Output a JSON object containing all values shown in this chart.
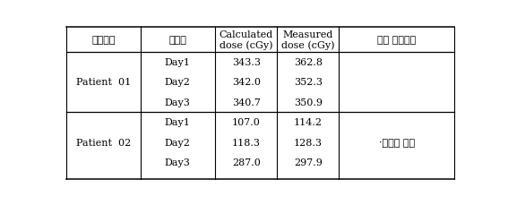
{
  "headers": [
    "환자번호",
    "치료일",
    "Calculated\ndose (cGy)",
    "Measured\ndose (cGy)",
    "환자 특이사항"
  ],
  "patients": [
    {
      "name": "Patient  01",
      "days": [
        "Day1",
        "Day2",
        "Day3"
      ],
      "calculated": [
        "343.3",
        "342.0",
        "340.7"
      ],
      "measured": [
        "362.8",
        "352.3",
        "350.9"
      ],
      "note_day": -1
    },
    {
      "name": "Patient  02",
      "days": [
        "Day1",
        "Day2",
        "Day3"
      ],
      "calculated": [
        "107.0",
        "118.3",
        "287.0"
      ],
      "measured": [
        "114.2",
        "128.3",
        "297.9"
      ],
      "note_day": 1
    }
  ],
  "note_text": "·점액질 분비",
  "bg_color": "#ffffff",
  "header_fontsize": 8.0,
  "data_fontsize": 8.0
}
